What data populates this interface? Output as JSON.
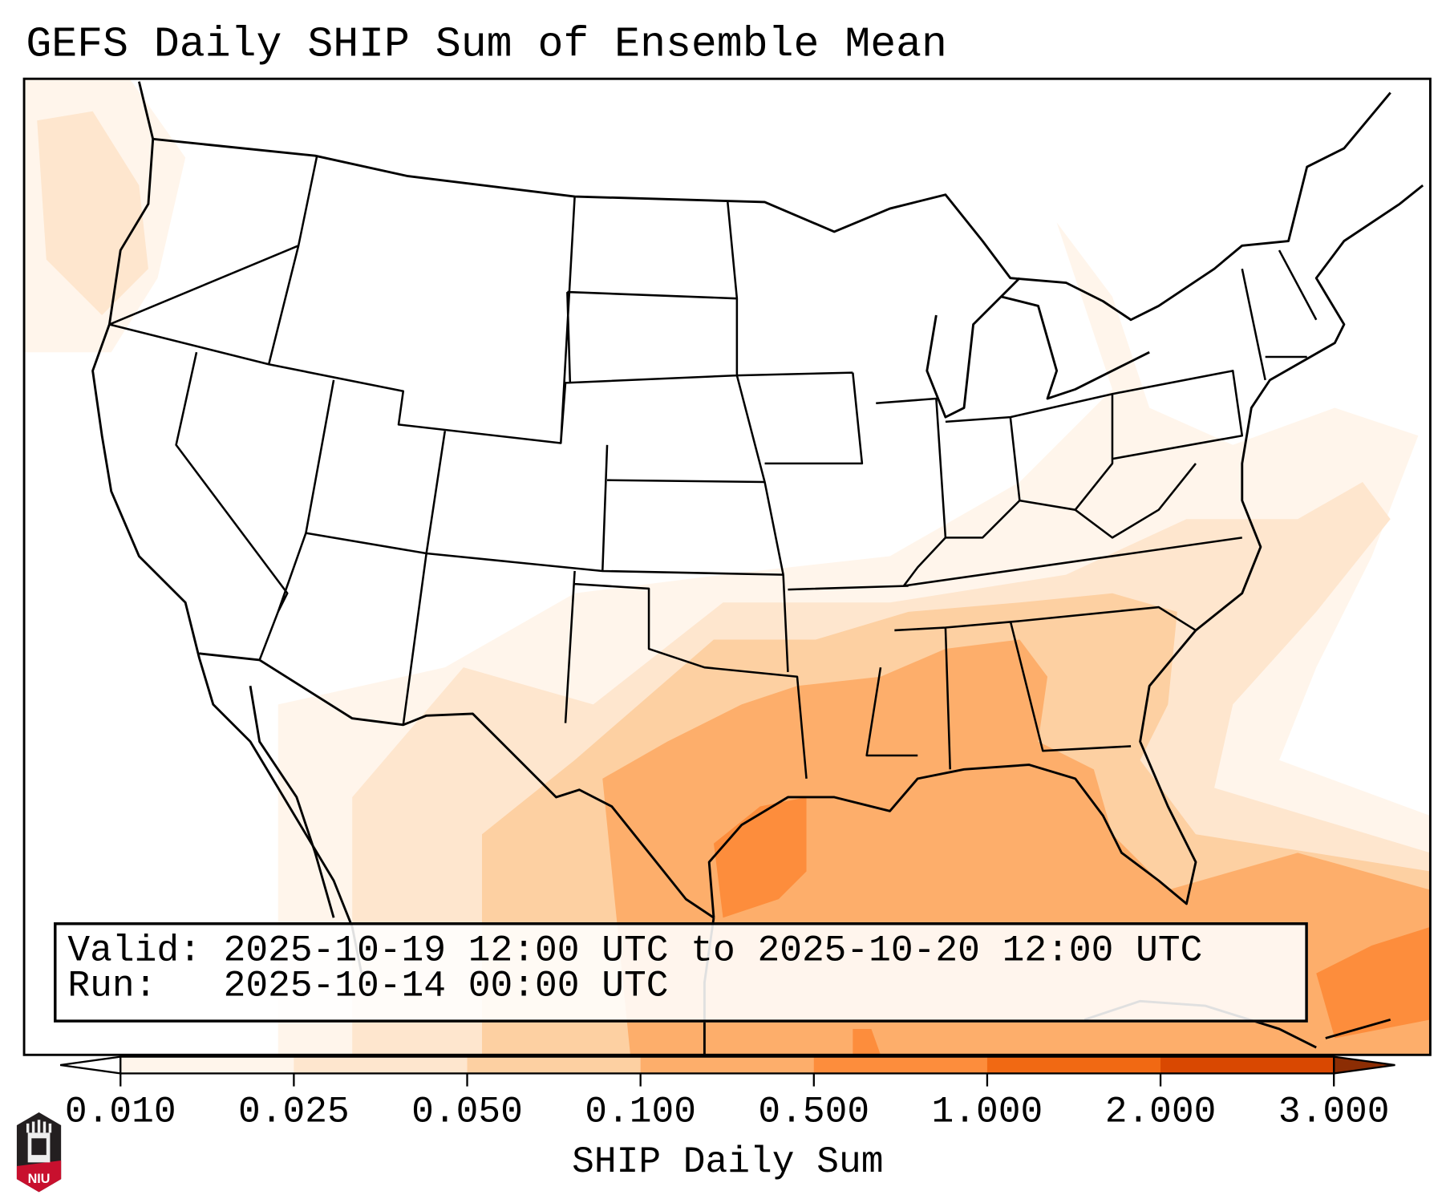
{
  "title": "GEFS Daily SHIP Sum of Ensemble Mean",
  "info": {
    "valid_label": "Valid:",
    "valid_value": "2025-10-19 12:00 UTC to 2025-10-20 12:00 UTC",
    "run_label": "Run:",
    "run_value": "2025-10-14 00:00 UTC"
  },
  "colorbar": {
    "label": "SHIP Daily Sum",
    "ticks": [
      "0.010",
      "0.025",
      "0.050",
      "0.100",
      "0.500",
      "1.000",
      "2.000",
      "3.000"
    ],
    "colors": [
      "#fff5eb",
      "#fee6ce",
      "#fdd0a2",
      "#fdae6b",
      "#fd8d3c",
      "#f16913",
      "#d94801"
    ],
    "under_color": "#ffffff",
    "over_color": "#8c2d04"
  },
  "logo": {
    "text": "NIU"
  }
}
